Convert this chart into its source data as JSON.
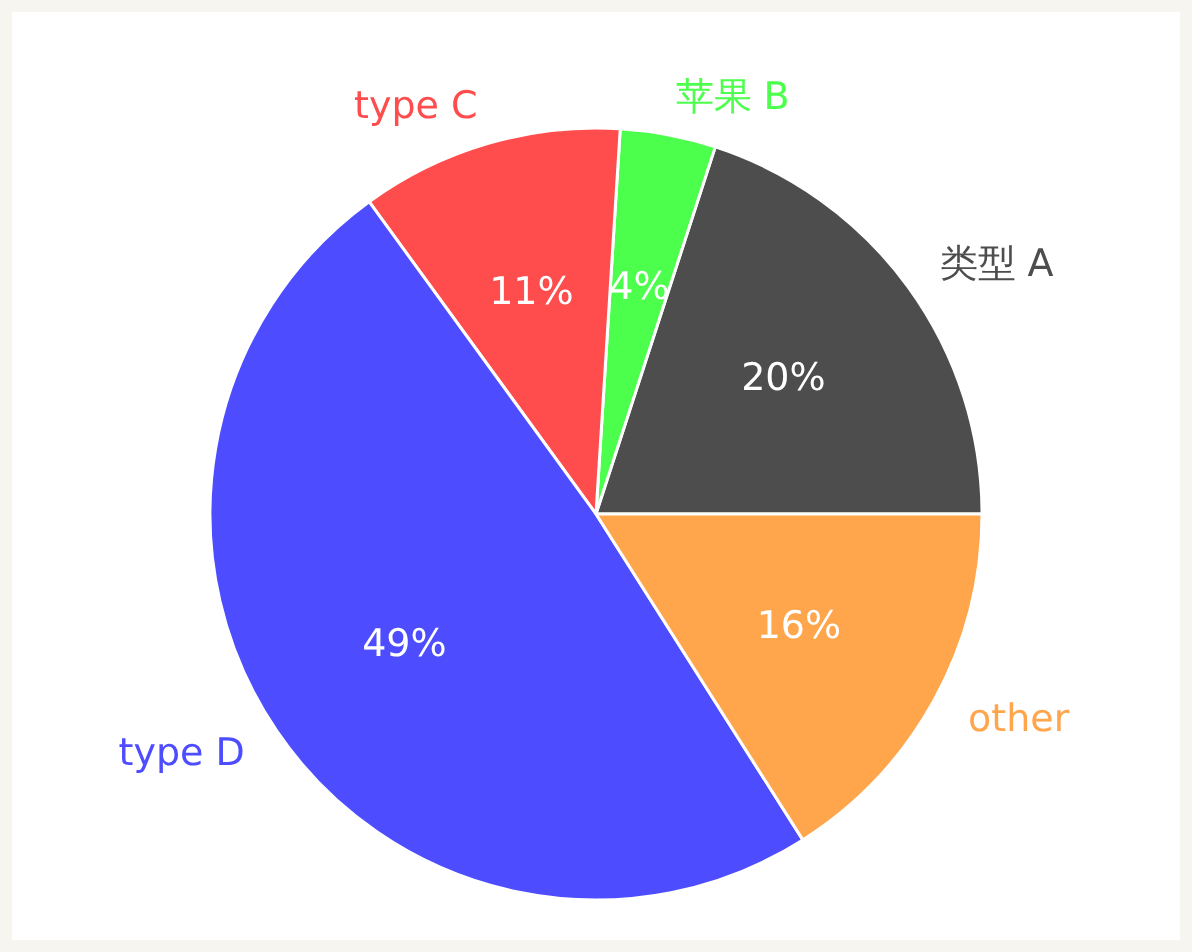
{
  "chart_data": {
    "type": "pie",
    "categories": [
      "类型 A",
      "苹果 B",
      "type C",
      "type D",
      "other"
    ],
    "values": [
      20,
      4,
      11,
      49,
      16
    ],
    "colors": [
      "#4d4d4d",
      "#4dff4d",
      "#ff4d4d",
      "#4d4dff",
      "#ffa64d"
    ],
    "value_labels": [
      "20%",
      "4%",
      "11%",
      "49%",
      "16%"
    ]
  }
}
